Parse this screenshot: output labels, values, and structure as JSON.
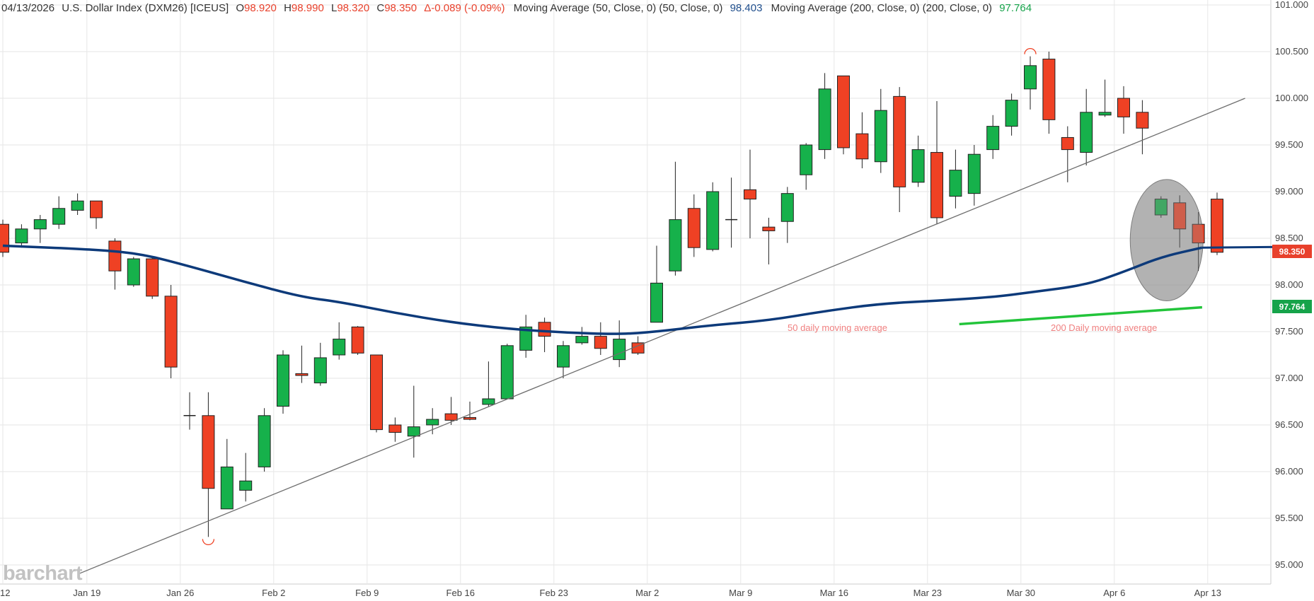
{
  "header": {
    "date": "04/13/2026",
    "instrument": "U.S. Dollar Index (DXM26) [ICEUS]",
    "o_label": "O",
    "o_value": "98.920",
    "h_label": "H",
    "h_value": "98.990",
    "l_label": "L",
    "l_value": "98.320",
    "c_label": "C",
    "c_value": "98.350",
    "change": "Δ-0.089 (-0.09%)",
    "ma50_label": "Moving Average (50, Close, 0)  (50, Close, 0)",
    "ma50_value": "98.403",
    "ma200_label": "Moving Average (200, Close, 0)  (200, Close, 0)",
    "ma200_value": "97.764"
  },
  "price_tags": {
    "last": "98.350",
    "ma200": "97.764"
  },
  "annotations": {
    "ma50_text": "50 daily moving average",
    "ma200_text": "200 Daily moving average"
  },
  "logo": "barchart",
  "colors": {
    "up": "#16b14b",
    "down": "#ef4124",
    "ma50": "#0d3a7a",
    "ma200": "#22c43a",
    "trendline": "#6e6e6e",
    "grid": "#e6e6e6",
    "annotation": "#f08080"
  },
  "chart_data": {
    "type": "candlestick",
    "title": "U.S. Dollar Index (DXM26) [ICEUS]",
    "y_range": [
      94.9,
      101.05
    ],
    "y_ticks": [
      "101.000",
      "100.500",
      "100.000",
      "99.500",
      "99.000",
      "98.500",
      "98.000",
      "97.500",
      "97.000",
      "96.500",
      "96.000",
      "95.500",
      "95.000"
    ],
    "x_ticks": [
      {
        "label": "12",
        "index": 0
      },
      {
        "label": "Jan 19",
        "index": 4.5
      },
      {
        "label": "Jan 26",
        "index": 9.5
      },
      {
        "label": "Feb 2",
        "index": 14.5
      },
      {
        "label": "Feb 9",
        "index": 19.5
      },
      {
        "label": "Feb 16",
        "index": 24.5
      },
      {
        "label": "Feb 23",
        "index": 29.5
      },
      {
        "label": "Mar 2",
        "index": 34.5
      },
      {
        "label": "Mar 9",
        "index": 39.5
      },
      {
        "label": "Mar 16",
        "index": 44.5
      },
      {
        "label": "Mar 23",
        "index": 49.5
      },
      {
        "label": "Mar 30",
        "index": 54.5
      },
      {
        "label": "Apr 6",
        "index": 59.5
      },
      {
        "label": "Apr 13",
        "index": 64.5
      }
    ],
    "candles": [
      {
        "o": 98.65,
        "h": 98.7,
        "l": 98.3,
        "c": 98.35
      },
      {
        "o": 98.45,
        "h": 98.65,
        "l": 98.4,
        "c": 98.6
      },
      {
        "o": 98.6,
        "h": 98.75,
        "l": 98.45,
        "c": 98.7
      },
      {
        "o": 98.65,
        "h": 98.95,
        "l": 98.6,
        "c": 98.82
      },
      {
        "o": 98.8,
        "h": 98.98,
        "l": 98.75,
        "c": 98.9
      },
      {
        "o": 98.9,
        "h": 98.9,
        "l": 98.6,
        "c": 98.72
      },
      {
        "o": 98.47,
        "h": 98.5,
        "l": 97.95,
        "c": 98.15
      },
      {
        "o": 98.0,
        "h": 98.3,
        "l": 97.98,
        "c": 98.28
      },
      {
        "o": 98.28,
        "h": 98.3,
        "l": 97.85,
        "c": 97.88
      },
      {
        "o": 97.88,
        "h": 98.0,
        "l": 97.0,
        "c": 97.12
      },
      {
        "o": 96.6,
        "h": 96.85,
        "l": 96.45,
        "c": 96.6
      },
      {
        "o": 96.6,
        "h": 96.85,
        "l": 95.3,
        "c": 95.82
      },
      {
        "o": 95.6,
        "h": 96.35,
        "l": 95.6,
        "c": 96.05
      },
      {
        "o": 95.8,
        "h": 96.2,
        "l": 95.68,
        "c": 95.9
      },
      {
        "o": 96.05,
        "h": 96.68,
        "l": 96.0,
        "c": 96.6
      },
      {
        "o": 96.7,
        "h": 97.3,
        "l": 96.62,
        "c": 97.25
      },
      {
        "o": 97.05,
        "h": 97.35,
        "l": 96.95,
        "c": 97.03
      },
      {
        "o": 96.95,
        "h": 97.38,
        "l": 96.92,
        "c": 97.22
      },
      {
        "o": 97.25,
        "h": 97.6,
        "l": 97.2,
        "c": 97.42
      },
      {
        "o": 97.55,
        "h": 97.56,
        "l": 97.25,
        "c": 97.27
      },
      {
        "o": 97.25,
        "h": 97.25,
        "l": 96.42,
        "c": 96.45
      },
      {
        "o": 96.5,
        "h": 96.58,
        "l": 96.32,
        "c": 96.42
      },
      {
        "o": 96.38,
        "h": 96.92,
        "l": 96.15,
        "c": 96.48
      },
      {
        "o": 96.5,
        "h": 96.68,
        "l": 96.4,
        "c": 96.56
      },
      {
        "o": 96.62,
        "h": 96.8,
        "l": 96.5,
        "c": 96.55
      },
      {
        "o": 96.58,
        "h": 96.75,
        "l": 96.55,
        "c": 96.56
      },
      {
        "o": 96.72,
        "h": 97.18,
        "l": 96.7,
        "c": 96.78
      },
      {
        "o": 96.78,
        "h": 97.37,
        "l": 96.78,
        "c": 97.35
      },
      {
        "o": 97.3,
        "h": 97.68,
        "l": 97.22,
        "c": 97.55
      },
      {
        "o": 97.6,
        "h": 97.65,
        "l": 97.28,
        "c": 97.45
      },
      {
        "o": 97.12,
        "h": 97.4,
        "l": 97.0,
        "c": 97.35
      },
      {
        "o": 97.38,
        "h": 97.55,
        "l": 97.36,
        "c": 97.45
      },
      {
        "o": 97.45,
        "h": 97.6,
        "l": 97.25,
        "c": 97.32
      },
      {
        "o": 97.2,
        "h": 97.62,
        "l": 97.12,
        "c": 97.42
      },
      {
        "o": 97.38,
        "h": 97.45,
        "l": 97.25,
        "c": 97.27
      },
      {
        "o": 97.6,
        "h": 98.42,
        "l": 97.6,
        "c": 98.02
      },
      {
        "o": 98.15,
        "h": 99.32,
        "l": 98.1,
        "c": 98.7
      },
      {
        "o": 98.82,
        "h": 98.97,
        "l": 98.3,
        "c": 98.4
      },
      {
        "o": 98.38,
        "h": 99.1,
        "l": 98.36,
        "c": 99.0
      },
      {
        "o": 98.7,
        "h": 99.15,
        "l": 98.4,
        "c": 98.7
      },
      {
        "o": 99.02,
        "h": 99.45,
        "l": 98.5,
        "c": 98.92
      },
      {
        "o": 98.62,
        "h": 98.72,
        "l": 98.22,
        "c": 98.58
      },
      {
        "o": 98.68,
        "h": 99.05,
        "l": 98.45,
        "c": 98.98
      },
      {
        "o": 99.18,
        "h": 99.52,
        "l": 99.02,
        "c": 99.5
      },
      {
        "o": 99.45,
        "h": 100.27,
        "l": 99.35,
        "c": 100.1
      },
      {
        "o": 100.24,
        "h": 100.24,
        "l": 99.4,
        "c": 99.47
      },
      {
        "o": 99.62,
        "h": 99.85,
        "l": 99.25,
        "c": 99.35
      },
      {
        "o": 99.32,
        "h": 100.1,
        "l": 99.2,
        "c": 99.87
      },
      {
        "o": 100.02,
        "h": 100.12,
        "l": 98.78,
        "c": 99.05
      },
      {
        "o": 99.1,
        "h": 99.6,
        "l": 99.05,
        "c": 99.45
      },
      {
        "o": 99.42,
        "h": 99.97,
        "l": 98.65,
        "c": 98.72
      },
      {
        "o": 98.95,
        "h": 99.45,
        "l": 98.82,
        "c": 99.23
      },
      {
        "o": 98.98,
        "h": 99.5,
        "l": 98.85,
        "c": 99.4
      },
      {
        "o": 99.45,
        "h": 99.82,
        "l": 99.35,
        "c": 99.7
      },
      {
        "o": 99.7,
        "h": 100.05,
        "l": 99.6,
        "c": 99.98
      },
      {
        "o": 100.1,
        "h": 100.45,
        "l": 99.88,
        "c": 100.35
      },
      {
        "o": 100.42,
        "h": 100.5,
        "l": 99.62,
        "c": 99.77
      },
      {
        "o": 99.58,
        "h": 99.7,
        "l": 99.1,
        "c": 99.45
      },
      {
        "o": 99.42,
        "h": 100.1,
        "l": 99.28,
        "c": 99.85
      },
      {
        "o": 99.82,
        "h": 100.2,
        "l": 99.8,
        "c": 99.85
      },
      {
        "o": 100.0,
        "h": 100.13,
        "l": 99.62,
        "c": 99.8
      },
      {
        "o": 99.85,
        "h": 99.98,
        "l": 99.4,
        "c": 99.68
      },
      {
        "o": 98.75,
        "h": 98.95,
        "l": 98.72,
        "c": 98.92
      },
      {
        "o": 98.88,
        "h": 98.96,
        "l": 98.4,
        "c": 98.6
      },
      {
        "o": 98.65,
        "h": 98.78,
        "l": 98.15,
        "c": 98.45
      },
      {
        "o": 98.92,
        "h": 98.99,
        "l": 98.32,
        "c": 98.35
      }
    ],
    "ma50": [
      {
        "i": 0,
        "v": 98.42
      },
      {
        "i": 5,
        "v": 98.38
      },
      {
        "i": 7.5,
        "v": 98.33
      },
      {
        "i": 10,
        "v": 98.2
      },
      {
        "i": 13,
        "v": 98.03
      },
      {
        "i": 16,
        "v": 97.87
      },
      {
        "i": 18,
        "v": 97.82
      },
      {
        "i": 21,
        "v": 97.7
      },
      {
        "i": 24,
        "v": 97.6
      },
      {
        "i": 27,
        "v": 97.53
      },
      {
        "i": 30,
        "v": 97.49
      },
      {
        "i": 33,
        "v": 97.47
      },
      {
        "i": 35,
        "v": 97.5
      },
      {
        "i": 38,
        "v": 97.57
      },
      {
        "i": 41,
        "v": 97.62
      },
      {
        "i": 44,
        "v": 97.72
      },
      {
        "i": 47,
        "v": 97.8
      },
      {
        "i": 50,
        "v": 97.83
      },
      {
        "i": 53,
        "v": 97.87
      },
      {
        "i": 55,
        "v": 97.92
      },
      {
        "i": 58,
        "v": 98.0
      },
      {
        "i": 60,
        "v": 98.14
      },
      {
        "i": 62,
        "v": 98.3
      },
      {
        "i": 64.2,
        "v": 98.4
      }
    ],
    "ma200": [
      {
        "i": 51.2,
        "v": 97.58
      },
      {
        "i": 64.2,
        "v": 97.76
      }
    ],
    "trendline": [
      {
        "i": 4,
        "v": 94.9
      },
      {
        "i": 66.5,
        "v": 100.0
      }
    ],
    "ellipse": {
      "i": 62.3,
      "v": 98.48,
      "ri": 1.95,
      "rv": 0.65
    }
  }
}
